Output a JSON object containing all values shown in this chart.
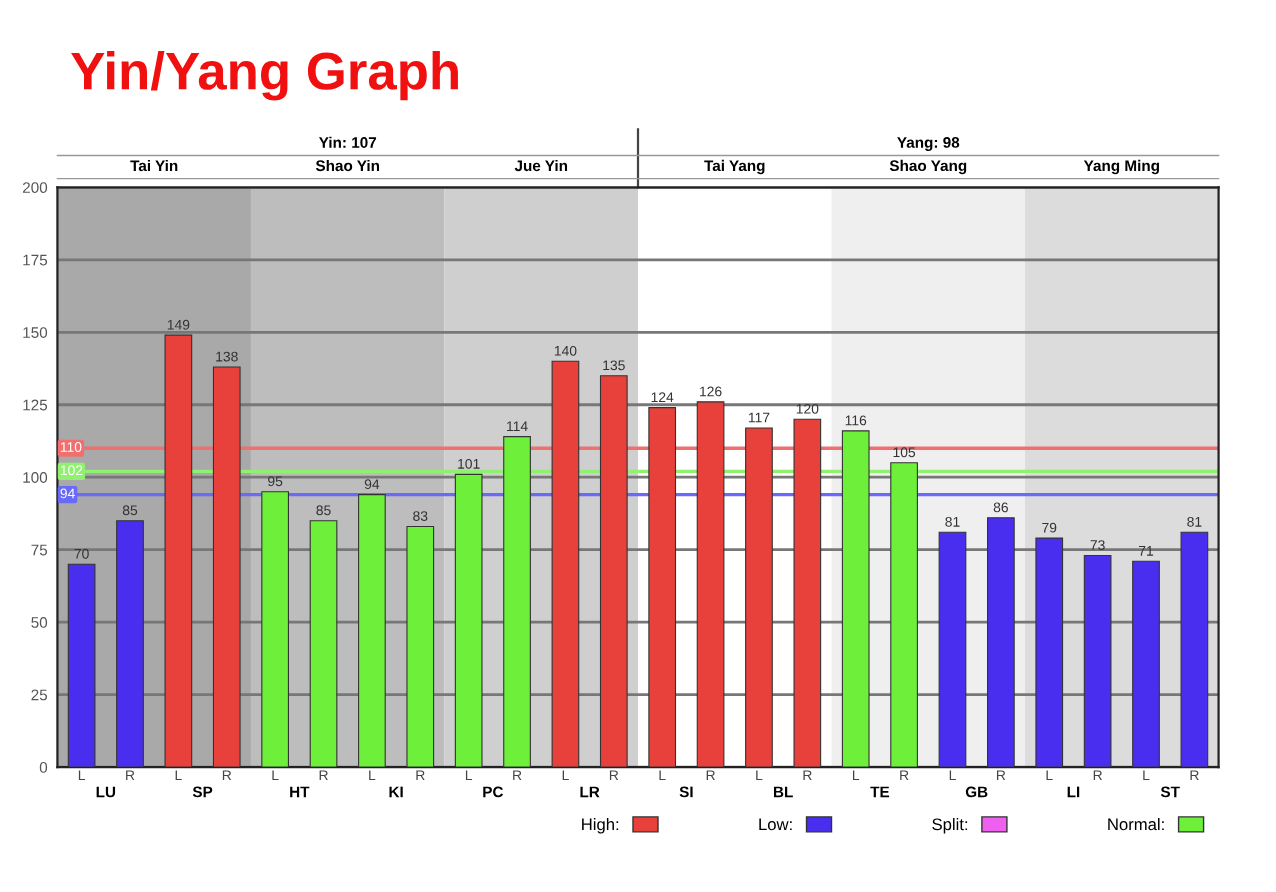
{
  "chart_data": {
    "type": "bar",
    "title": "Yin/Yang Graph",
    "categories": [
      "L",
      "R",
      "L",
      "R",
      "L",
      "R",
      "L",
      "R",
      "L",
      "R",
      "L",
      "R",
      "L",
      "R",
      "L",
      "R",
      "L",
      "R",
      "L",
      "R",
      "L",
      "R",
      "L",
      "R"
    ],
    "series": [
      {
        "name": "High:",
        "color": "#e8403a",
        "values": [
          null,
          null,
          149,
          138,
          null,
          null,
          null,
          null,
          null,
          null,
          140,
          135,
          124,
          126,
          117,
          120,
          null,
          null,
          null,
          null,
          null,
          null,
          null,
          null
        ]
      },
      {
        "name": "Low:",
        "color": "#4a2ef0",
        "values": [
          70,
          85,
          null,
          null,
          null,
          null,
          null,
          null,
          null,
          null,
          null,
          null,
          null,
          null,
          null,
          null,
          null,
          null,
          81,
          86,
          79,
          73,
          71,
          81
        ]
      },
      {
        "name": "Split:",
        "color": "#f060f0",
        "values": [
          null,
          null,
          null,
          null,
          null,
          null,
          null,
          null,
          null,
          null,
          null,
          null,
          null,
          null,
          null,
          null,
          null,
          null,
          null,
          null,
          null,
          null,
          null,
          null
        ]
      },
      {
        "name": "Normal:",
        "color": "#6ef03a",
        "values": [
          null,
          null,
          null,
          null,
          95,
          85,
          94,
          83,
          101,
          114,
          null,
          null,
          null,
          null,
          null,
          null,
          116,
          105,
          null,
          null,
          null,
          null,
          null,
          null
        ]
      }
    ],
    "data_labels": true,
    "ylim": [
      0,
      200
    ],
    "yticks": [
      0,
      25,
      50,
      75,
      100,
      125,
      150,
      175,
      200
    ],
    "grid": "y",
    "legend": "bottom right",
    "ref_lines": [
      {
        "axis": "y",
        "value": 110,
        "label": "110",
        "color": "#f07070"
      },
      {
        "axis": "y",
        "value": 102,
        "label": "102",
        "color": "#90f070"
      },
      {
        "axis": "y",
        "value": 94,
        "label": "94",
        "color": "#6a6af8"
      }
    ],
    "annotations": [
      "Yin: 107",
      "Yang: 98",
      "Tai Yin",
      "Shao Yin",
      "Jue Yin",
      "Tai Yang",
      "Shao Yang",
      "Yang Ming",
      "LU",
      "SP",
      "HT",
      "KI",
      "PC",
      "LR",
      "SI",
      "BL",
      "TE",
      "GB",
      "LI",
      "ST"
    ]
  }
}
